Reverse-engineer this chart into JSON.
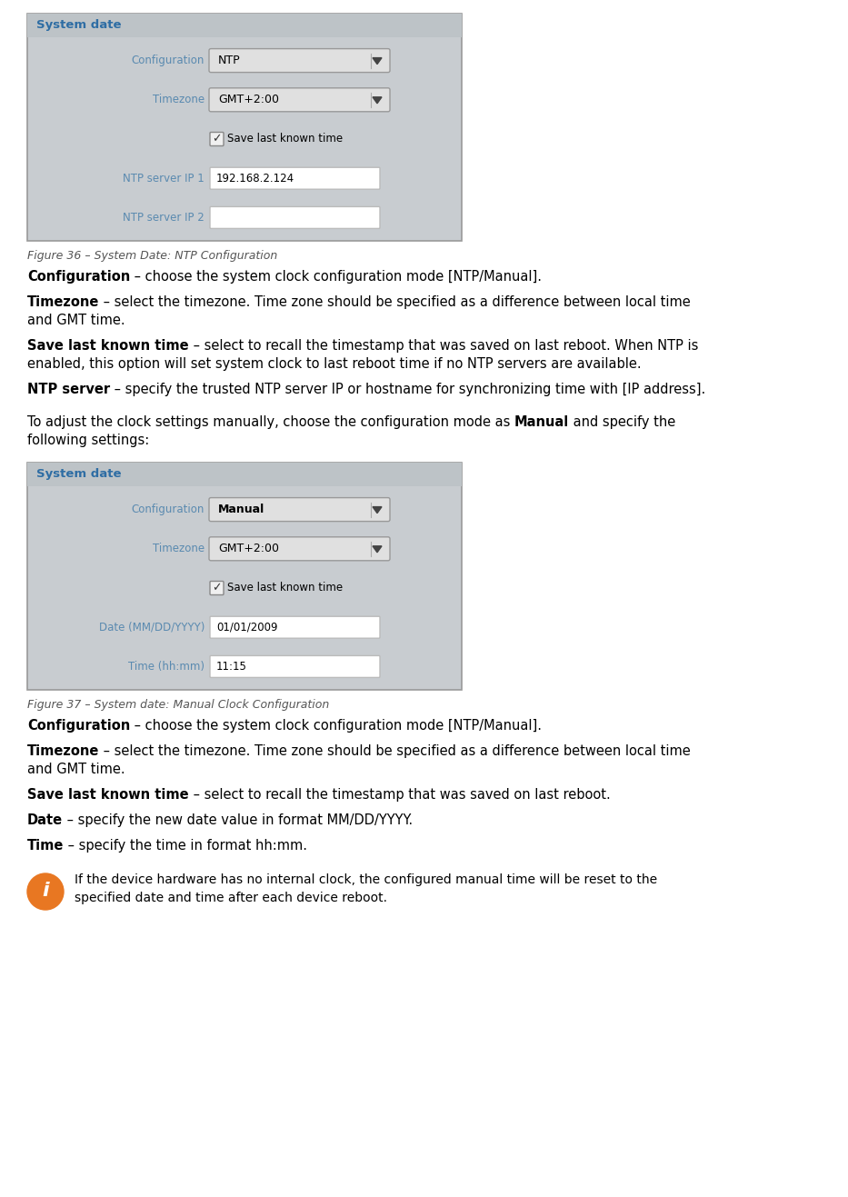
{
  "page_bg": "#ffffff",
  "panel_bg": "#c8ccd0",
  "panel_border": "#aaaaaa",
  "panel_title_color": "#2e6da4",
  "panel_title_text": "System date",
  "field_label_color": "#5a8ab0",
  "input_bg": "#ffffff",
  "text_color": "#000000",
  "fig1_caption": "Figure 36 – System Date: NTP Configuration",
  "fig1_rows": [
    {
      "label": "Configuration",
      "type": "dropdown",
      "value": "NTP",
      "bold_value": false
    },
    {
      "label": "Timezone",
      "type": "dropdown",
      "value": "GMT+2:00",
      "bold_value": false
    },
    {
      "label": "",
      "type": "checkbox",
      "value": "Save last known time"
    },
    {
      "label": "NTP server IP 1",
      "type": "input",
      "value": "192.168.2.124"
    },
    {
      "label": "NTP server IP 2",
      "type": "input",
      "value": ""
    }
  ],
  "fig2_caption": "Figure 37 – System date: Manual Clock Configuration",
  "fig2_rows": [
    {
      "label": "Configuration",
      "type": "dropdown",
      "value": "Manual",
      "bold_value": true
    },
    {
      "label": "Timezone",
      "type": "dropdown",
      "value": "GMT+2:00",
      "bold_value": false
    },
    {
      "label": "",
      "type": "checkbox",
      "value": "Save last known time"
    },
    {
      "label": "Date (MM/DD/YYYY)",
      "type": "input",
      "value": "01/01/2009"
    },
    {
      "label": "Time (hh:mm)",
      "type": "input",
      "value": "11:15"
    }
  ],
  "body_paragraphs_1": [
    {
      "bold": "Configuration",
      "normal": " – choose the system clock configuration mode [NTP/Manual]."
    },
    {
      "bold": "Timezone",
      "normal": " – select the timezone. Time zone should be specified as a difference between local time\nand GMT time."
    },
    {
      "bold": "Save last known time",
      "normal": " – select to recall the timestamp that was saved on last reboot. When NTP is\nenabled, this option will set system clock to last reboot time if no NTP servers are available."
    },
    {
      "bold": "NTP server",
      "normal": " – specify the trusted NTP server IP or hostname for synchronizing time with [IP address]."
    }
  ],
  "transition_parts": [
    {
      "bold": false,
      "text": "To adjust the clock settings manually, choose the configuration mode as "
    },
    {
      "bold": true,
      "text": "Manual"
    },
    {
      "bold": false,
      "text": " and specify the\nfollowing settings:"
    }
  ],
  "body_paragraphs_2": [
    {
      "bold": "Configuration",
      "normal": " – choose the system clock configuration mode [NTP/Manual]."
    },
    {
      "bold": "Timezone",
      "normal": " – select the timezone. Time zone should be specified as a difference between local time\nand GMT time."
    },
    {
      "bold": "Save last known time",
      "normal": " – select to recall the timestamp that was saved on last reboot."
    },
    {
      "bold": "Date",
      "normal": " – specify the new date value in format MM/DD/YYYY."
    },
    {
      "bold": "Time",
      "normal": " – specify the time in format hh:mm."
    }
  ],
  "note_bg": "#e87722",
  "note_text_line1": "If the device hardware has no internal clock, the configured manual time will be reset to the",
  "note_text_line2": "specified date and time after each device reboot."
}
